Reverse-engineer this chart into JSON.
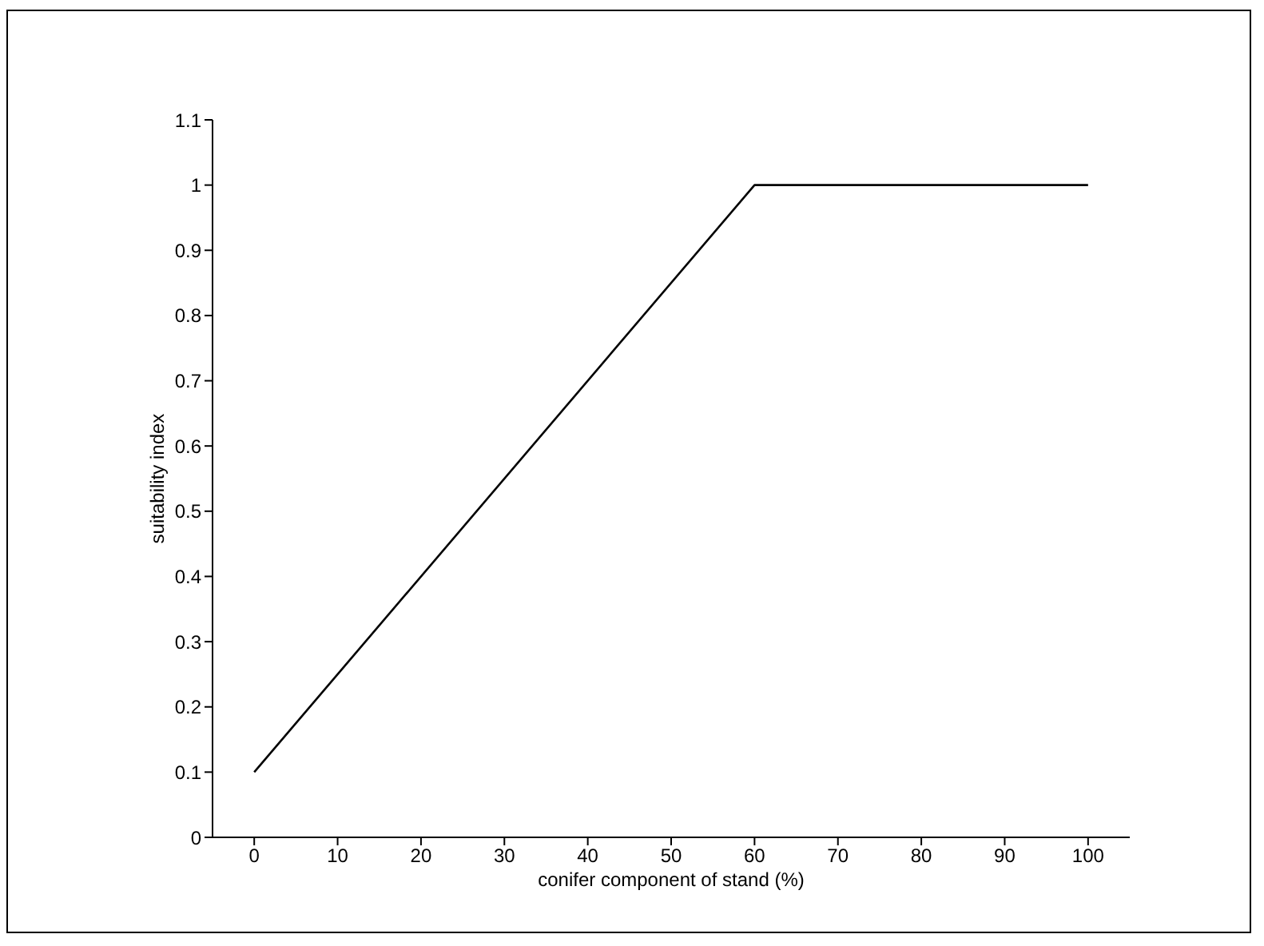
{
  "chart_data": {
    "type": "line",
    "xlabel": "conifer component of stand (%)",
    "ylabel": "suitability index",
    "x": [
      0,
      60,
      100
    ],
    "series": [
      {
        "color": "#000000",
        "values": [
          0.1,
          1,
          1
        ]
      }
    ],
    "xlim": [
      -5,
      105
    ],
    "xticks": [
      0,
      10,
      20,
      30,
      40,
      50,
      60,
      70,
      80,
      90,
      100
    ],
    "ylim": [
      0,
      1.1
    ],
    "yticks": [
      0,
      0.1,
      0.2,
      0.3,
      0.4,
      0.5,
      0.6,
      0.7,
      0.8,
      0.9,
      1,
      1.1
    ],
    "grid": false,
    "legend": false,
    "marker": "none",
    "line_style": "solid"
  }
}
